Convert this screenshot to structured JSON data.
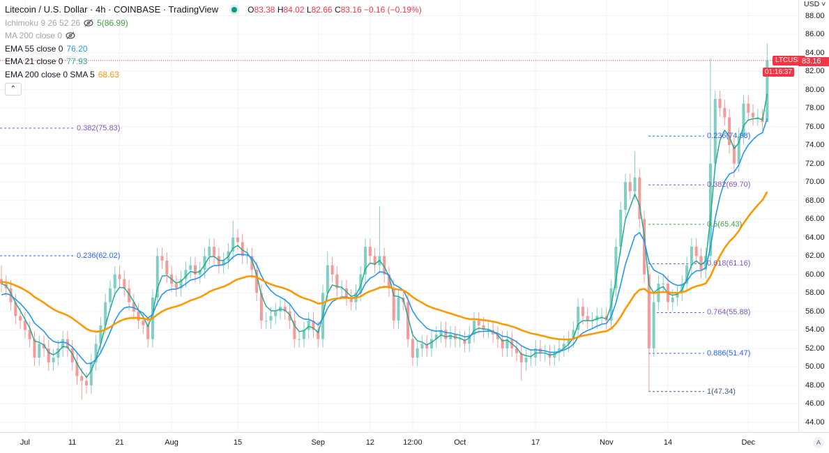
{
  "header": {
    "title": "Litecoin / U.S. Dollar · 4h · COINBASE · TradingView",
    "ohlc": {
      "o_label": "O",
      "o": "83.38",
      "h_label": "H",
      "h": "84.02",
      "l_label": "L",
      "l": "82.66",
      "c_label": "C",
      "c": "83.16",
      "change": "−0.16 (−0.19%)"
    },
    "status_color": "#089981"
  },
  "legend": {
    "ichimoku": "Ichimoku 9 26 52 26",
    "ichimoku_value": "5(86.99)",
    "ma200": "MA 200 close 0",
    "ema55": {
      "label": "EMA 55 close 0",
      "value": "76.20",
      "color": "#2196f3"
    },
    "ema21": {
      "label": "EMA 21 close 0",
      "value": "77.93",
      "color": "#22ab94"
    },
    "ema200": {
      "label": "EMA 200 close 0 SMA 5",
      "value": "68.63",
      "color": "#ff9800"
    },
    "collapse_icon": "chevron-up"
  },
  "price_axis": {
    "currency": "USD",
    "ticks": [
      "88.00",
      "86.00",
      "84.00",
      "82.00",
      "80.00",
      "78.00",
      "76.00",
      "74.00",
      "72.00",
      "70.00",
      "68.00",
      "66.00",
      "64.00",
      "62.00",
      "60.00",
      "58.00",
      "56.00",
      "54.00",
      "52.00",
      "50.00",
      "48.00",
      "46.00",
      "44.00"
    ],
    "last_price": "83.16",
    "countdown": "01:16:37",
    "symbol": "LTCUSD",
    "auto_label": "A"
  },
  "time_axis": {
    "ticks": [
      {
        "label": "Jul",
        "date": "Jul 1"
      },
      {
        "label": "11",
        "date": "Jul 11"
      },
      {
        "label": "21",
        "date": "Jul 21"
      },
      {
        "label": "Aug",
        "date": "Aug 1"
      },
      {
        "label": "15",
        "date": "Aug 15"
      },
      {
        "label": "Sep",
        "date": "Sep 1"
      },
      {
        "label": "12",
        "date": "Sep 12"
      },
      {
        "label": "12:00",
        "date": "Sep 21"
      },
      {
        "label": "Oct",
        "date": "Oct 1"
      },
      {
        "label": "17",
        "date": "Oct 17"
      },
      {
        "label": "Nov",
        "date": "Nov 1"
      },
      {
        "label": "14",
        "date": "Nov 14"
      },
      {
        "label": "Dec",
        "date": "Dec 1"
      }
    ]
  },
  "chart_data": {
    "type": "candlestick",
    "ylim": [
      43,
      89
    ],
    "grid": true,
    "colors": {
      "up": "#7fcfc3",
      "down": "#f49a98",
      "price_line": "#f23645"
    },
    "months": [
      {
        "month": "Jun",
        "start_day": 26,
        "close": [
          59,
          58.5,
          57,
          55.5,
          55
        ]
      },
      {
        "month": "Jul",
        "start_day": 1,
        "close": [
          54,
          53,
          51,
          52.5,
          52,
          50.5,
          51,
          52,
          53,
          52,
          50.5,
          49,
          48.5,
          48,
          50.5,
          52.5,
          54.5,
          57,
          58.5,
          60,
          59.5,
          58.5,
          57,
          56,
          55,
          54.5,
          53,
          57.5,
          62,
          61.5,
          60
        ]
      },
      {
        "month": "Aug",
        "start_day": 1,
        "close": [
          59,
          58.5,
          59.5,
          60.5,
          61,
          60,
          60.5,
          62,
          63,
          62,
          61,
          61.5,
          62.5,
          64,
          63.5,
          62,
          62,
          60.5,
          58,
          55,
          55,
          55.5,
          56,
          56.5,
          56,
          55,
          53,
          53,
          54,
          55,
          54
        ]
      },
      {
        "month": "Sep",
        "start_day": 1,
        "close": [
          53,
          58,
          61,
          60,
          58.5,
          58.5,
          57.5,
          57,
          58,
          60,
          63,
          62,
          61,
          62,
          60,
          58.5,
          55,
          57.5,
          57,
          53,
          51,
          52,
          52.5,
          52,
          53,
          53.5,
          54,
          53,
          53.5,
          53
        ]
      },
      {
        "month": "Oct",
        "start_day": 1,
        "close": [
          53,
          52.5,
          53.5,
          55,
          54.5,
          54,
          54,
          53.5,
          53,
          52,
          53,
          52,
          51.5,
          50.5,
          51,
          51,
          52,
          51.5,
          51.5,
          51,
          51.5,
          52,
          52.5,
          53,
          54,
          56.5,
          55.5,
          55,
          55,
          55.5,
          55.5
        ]
      },
      {
        "month": "Nov",
        "start_day": 1,
        "close": [
          55,
          58.5,
          63,
          67,
          70,
          69,
          70.5,
          66,
          60,
          52,
          57,
          59,
          59,
          57,
          57.5,
          58,
          59,
          61,
          63,
          62,
          60.5,
          62,
          72,
          79,
          78,
          77,
          74,
          72,
          75,
          78.5
        ]
      },
      {
        "month": "Dec",
        "start_day": 1,
        "close": [
          77.5,
          77,
          77,
          76.5,
          83.16
        ]
      }
    ],
    "extremes": [
      {
        "date": "Jun 26",
        "high": 61
      },
      {
        "date": "Jul 13",
        "low": 46.5
      },
      {
        "date": "Aug 14",
        "high": 65.8
      },
      {
        "date": "Sep 3",
        "high": 62.5
      },
      {
        "date": "Sep 14",
        "high": 67.4
      },
      {
        "date": "Oct 14",
        "low": 48.5
      },
      {
        "date": "Nov 7",
        "high": 73.3
      },
      {
        "date": "Nov 10",
        "low": 47.3
      },
      {
        "date": "Nov 23",
        "high": 83.4
      },
      {
        "date": "Nov 28",
        "low": 70.5
      },
      {
        "date": "Dec 5",
        "high": 85,
        "low": 76.5
      }
    ],
    "series": [
      {
        "name": "EMA 21 close 0",
        "color": "#22ab94",
        "last": 77.93
      },
      {
        "name": "EMA 55 close 0",
        "color": "#2196f3",
        "last": 76.2
      },
      {
        "name": "EMA 200 close 0 SMA 5",
        "color": "#ff9800",
        "last": 68.63
      }
    ],
    "fib_left": [
      {
        "label": "0.382(75.83)",
        "value": 75.83,
        "color": "#7e57c2"
      },
      {
        "label": "0.236(62.02)",
        "value": 62.02,
        "color": "#2962ff"
      }
    ],
    "fib_right": [
      {
        "label": "0.236(74.98)",
        "value": 74.98,
        "color": "#2962ff"
      },
      {
        "label": "0.382(69.70)",
        "value": 69.7,
        "color": "#7e57c2"
      },
      {
        "label": "0.5(65.43)",
        "value": 65.43,
        "color": "#43a047"
      },
      {
        "label": "0.618(61.16)",
        "value": 61.16,
        "color": "#7e57c2"
      },
      {
        "label": "0.764(55.88)",
        "value": 55.88,
        "color": "#7e57c2"
      },
      {
        "label": "0.886(51.47)",
        "value": 51.47,
        "color": "#2962ff"
      },
      {
        "label": "1(47.34)",
        "value": 47.34,
        "color": "#3f5a80"
      }
    ]
  }
}
